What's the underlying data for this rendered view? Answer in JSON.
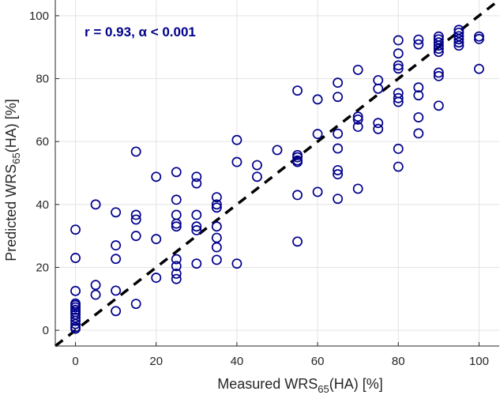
{
  "chart_data": {
    "type": "scatter",
    "title": "",
    "xlabel": {
      "main": "Measured WRS",
      "sub": "65",
      "suffix": "(HA) [%]"
    },
    "ylabel": {
      "main": "Predicted WRS",
      "sub": "65",
      "suffix": "(HA) [%]"
    },
    "xlim": [
      -5,
      105
    ],
    "ylim": [
      -5,
      105
    ],
    "grid": true,
    "xticks": [
      0,
      20,
      40,
      60,
      80,
      100
    ],
    "yticks": [
      0,
      20,
      40,
      60,
      80,
      100
    ],
    "xtick_labels": [
      "0",
      "20",
      "40",
      "60",
      "80",
      "100"
    ],
    "ytick_labels": [
      "0",
      "20",
      "40",
      "60",
      "80",
      "100"
    ],
    "annotation": "r = 0.93, α < 0.001",
    "reference_line": {
      "style": "dashed",
      "slope": 1,
      "intercept": 0,
      "color": "#000000"
    },
    "marker_color": "#00008B",
    "series": [
      {
        "name": "WRS65(HA)",
        "marker": "open-circle",
        "points": [
          [
            0,
            32
          ],
          [
            0,
            23
          ],
          [
            0,
            12.5
          ],
          [
            0,
            8.5
          ],
          [
            0,
            8
          ],
          [
            0,
            7.3
          ],
          [
            0,
            6.5
          ],
          [
            0,
            5.8
          ],
          [
            0,
            5
          ],
          [
            0,
            4
          ],
          [
            0,
            3
          ],
          [
            0,
            2
          ],
          [
            0,
            1
          ],
          [
            0,
            0.5
          ],
          [
            5,
            40
          ],
          [
            5,
            14.4
          ],
          [
            5,
            11.3
          ],
          [
            10,
            37.5
          ],
          [
            10,
            27
          ],
          [
            10,
            22.7
          ],
          [
            10,
            12.6
          ],
          [
            10,
            6.1
          ],
          [
            15,
            56.8
          ],
          [
            15,
            36.7
          ],
          [
            15,
            35.2
          ],
          [
            15,
            30
          ],
          [
            15,
            8.4
          ],
          [
            20,
            48.8
          ],
          [
            20,
            29
          ],
          [
            20,
            16.7
          ],
          [
            25,
            50.3
          ],
          [
            25,
            41.5
          ],
          [
            25,
            36.7
          ],
          [
            25,
            33.9
          ],
          [
            25,
            33
          ],
          [
            25,
            22.6
          ],
          [
            25,
            20.4
          ],
          [
            25,
            18
          ],
          [
            25,
            16.3
          ],
          [
            30,
            48.8
          ],
          [
            30,
            46.7
          ],
          [
            30,
            36.7
          ],
          [
            30,
            33
          ],
          [
            30,
            31.8
          ],
          [
            30,
            21.2
          ],
          [
            35,
            42.3
          ],
          [
            35,
            40
          ],
          [
            35,
            39
          ],
          [
            35,
            33
          ],
          [
            35,
            29.4
          ],
          [
            35,
            26.4
          ],
          [
            35,
            22.4
          ],
          [
            40,
            60.5
          ],
          [
            40,
            53.5
          ],
          [
            40,
            21.2
          ],
          [
            45,
            52.5
          ],
          [
            45,
            48.8
          ],
          [
            50,
            57.3
          ],
          [
            55,
            76.2
          ],
          [
            55,
            55.7
          ],
          [
            55,
            55
          ],
          [
            55,
            54
          ],
          [
            55,
            53.5
          ],
          [
            55,
            43
          ],
          [
            55,
            28.2
          ],
          [
            60,
            73.4
          ],
          [
            60,
            62.4
          ],
          [
            60,
            44
          ],
          [
            65,
            78.7
          ],
          [
            65,
            74.2
          ],
          [
            65,
            62.5
          ],
          [
            65,
            57.8
          ],
          [
            65,
            50.9
          ],
          [
            65,
            49.6
          ],
          [
            65,
            41.8
          ],
          [
            70,
            82.8
          ],
          [
            70,
            67.9
          ],
          [
            70,
            67
          ],
          [
            70,
            64.7
          ],
          [
            70,
            45
          ],
          [
            75,
            79.5
          ],
          [
            75,
            76.8
          ],
          [
            75,
            65.9
          ],
          [
            75,
            64
          ],
          [
            80,
            92.2
          ],
          [
            80,
            88
          ],
          [
            80,
            84.2
          ],
          [
            80,
            83.2
          ],
          [
            80,
            75.4
          ],
          [
            80,
            73.8
          ],
          [
            80,
            72.6
          ],
          [
            80,
            57.7
          ],
          [
            80,
            52
          ],
          [
            85,
            92.4
          ],
          [
            85,
            90.9
          ],
          [
            85,
            77.2
          ],
          [
            85,
            74.7
          ],
          [
            85,
            67.7
          ],
          [
            85,
            62.6
          ],
          [
            90,
            93.4
          ],
          [
            90,
            92.5
          ],
          [
            90,
            91.5
          ],
          [
            90,
            90.5
          ],
          [
            90,
            89.5
          ],
          [
            90,
            88.5
          ],
          [
            90,
            81.9
          ],
          [
            90,
            80.8
          ],
          [
            90,
            71.4
          ],
          [
            95,
            95.5
          ],
          [
            95,
            94.6
          ],
          [
            95,
            93.5
          ],
          [
            95,
            92.5
          ],
          [
            95,
            91.5
          ],
          [
            95,
            90.5
          ],
          [
            100,
            93.4
          ],
          [
            100,
            92.6
          ],
          [
            100,
            83.1
          ]
        ]
      }
    ]
  }
}
